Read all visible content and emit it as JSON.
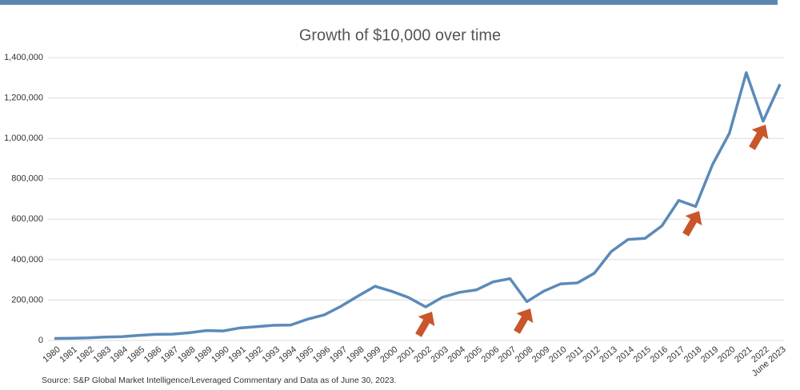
{
  "chart_data": {
    "type": "line",
    "title": "Growth of $10,000 over time",
    "categories": [
      "1980",
      "1981",
      "1982",
      "1983",
      "1984",
      "1985",
      "1986",
      "1987",
      "1988",
      "1989",
      "1990",
      "1991",
      "1992",
      "1993",
      "1994",
      "1995",
      "1996",
      "1997",
      "1998",
      "1999",
      "2000",
      "2001",
      "2002",
      "2003",
      "2004",
      "2005",
      "2006",
      "2007",
      "2008",
      "2009",
      "2010",
      "2011",
      "2012",
      "2013",
      "2014",
      "2015",
      "2016",
      "2017",
      "2018",
      "2019",
      "2020",
      "2021",
      "2022",
      "June 2023"
    ],
    "values": [
      10000,
      11000,
      13000,
      17000,
      19000,
      25000,
      30000,
      31000,
      38000,
      49000,
      47000,
      62000,
      68000,
      75000,
      76000,
      105000,
      127000,
      170000,
      220000,
      268000,
      243000,
      212000,
      166000,
      214000,
      238000,
      250000,
      290000,
      306000,
      192000,
      244000,
      280000,
      285000,
      333000,
      440000,
      500000,
      505000,
      567000,
      693000,
      663000,
      870000,
      1025000,
      1325000,
      1085000,
      1268000
    ],
    "color": "#5b8ab8",
    "ylim": [
      0,
      1400000
    ],
    "yticks": [
      0,
      {
        "value": 200000,
        "label": "200,000"
      },
      {
        "value": 400000,
        "label": "400,000"
      },
      {
        "value": 600000,
        "label": "600,000"
      },
      {
        "value": 800000,
        "label": "800,000"
      },
      {
        "value": 1000000,
        "label": "1,000,000"
      },
      {
        "value": 1200000,
        "label": "1,200,000"
      },
      {
        "value": 1400000,
        "label": "1,400,000"
      }
    ],
    "grid": true,
    "source": "Source: S&P Global Market Intelligence/Leveraged Commentary and Data as of June 30, 2023."
  }
}
